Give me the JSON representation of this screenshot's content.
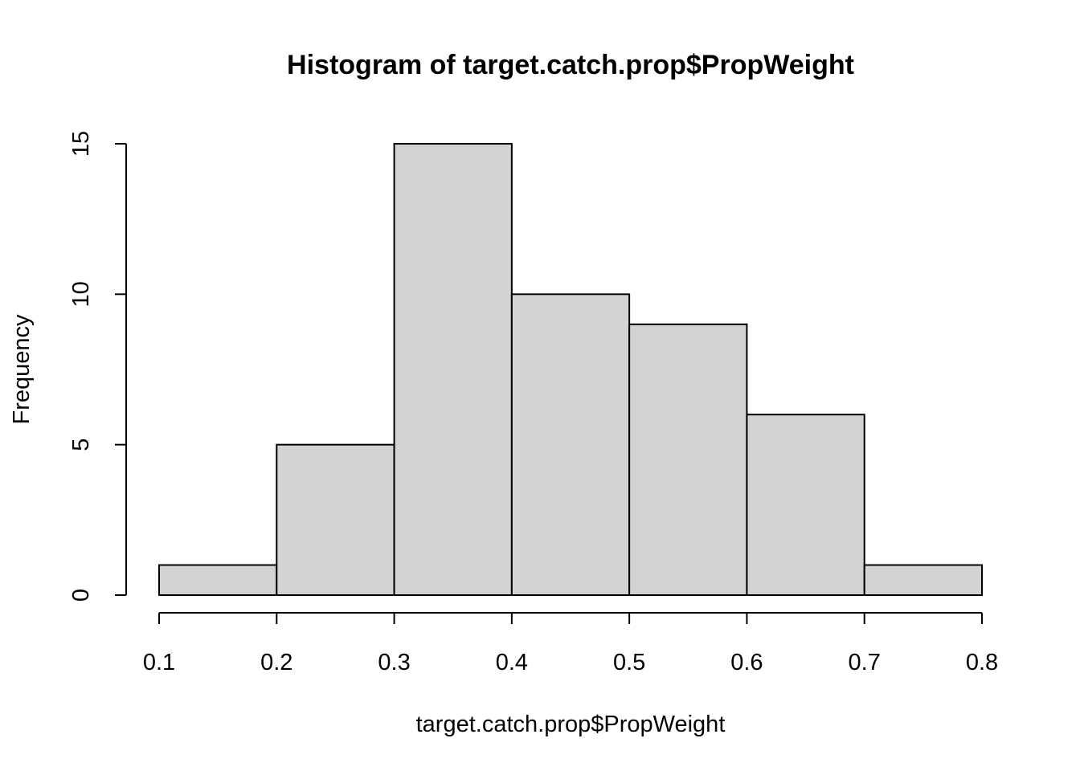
{
  "chart_data": {
    "type": "bar",
    "title": "Histogram of target.catch.prop$PropWeight",
    "xlabel": "target.catch.prop$PropWeight",
    "ylabel": "Frequency",
    "bins": [
      {
        "start": 0.1,
        "end": 0.2,
        "count": 1
      },
      {
        "start": 0.2,
        "end": 0.3,
        "count": 5
      },
      {
        "start": 0.3,
        "end": 0.4,
        "count": 15
      },
      {
        "start": 0.4,
        "end": 0.5,
        "count": 10
      },
      {
        "start": 0.5,
        "end": 0.6,
        "count": 9
      },
      {
        "start": 0.6,
        "end": 0.7,
        "count": 6
      },
      {
        "start": 0.7,
        "end": 0.8,
        "count": 1
      }
    ],
    "x_ticks": [
      "0.1",
      "0.2",
      "0.3",
      "0.4",
      "0.5",
      "0.6",
      "0.7",
      "0.8"
    ],
    "y_ticks": [
      "0",
      "5",
      "10",
      "15"
    ],
    "xlim": [
      0.1,
      0.8
    ],
    "ylim": [
      0,
      15
    ],
    "grid": false,
    "colors": {
      "bar_fill": "#d3d3d3",
      "bar_stroke": "#000000"
    }
  }
}
